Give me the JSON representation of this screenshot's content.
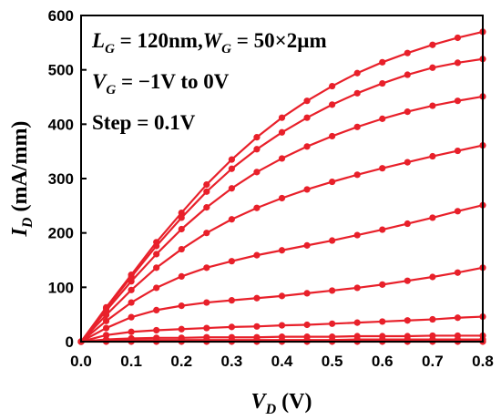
{
  "chart_data": {
    "type": "line",
    "title": "",
    "xlabel": {
      "main": "V",
      "sub": "D",
      "unit": " (V)"
    },
    "ylabel": {
      "main": "I",
      "sub": "D",
      "unit": " (mA/mm)"
    },
    "xlim": [
      0,
      0.8
    ],
    "ylim": [
      0,
      600
    ],
    "xticks": [
      "0.0",
      "0.1",
      "0.2",
      "0.3",
      "0.4",
      "0.5",
      "0.6",
      "0.7",
      "0.8"
    ],
    "yticks": [
      "0",
      "100",
      "200",
      "300",
      "400",
      "500",
      "600"
    ],
    "grid": false,
    "line_color": "#e8202a",
    "x": [
      0,
      0.05,
      0.1,
      0.15,
      0.2,
      0.25,
      0.3,
      0.35,
      0.4,
      0.45,
      0.5,
      0.55,
      0.6,
      0.65,
      0.7,
      0.75,
      0.8
    ],
    "series": [
      {
        "values": [
          0,
          63,
          123,
          183,
          237,
          289,
          335,
          376,
          412,
          443,
          470,
          494,
          514,
          531,
          546,
          559,
          570
        ]
      },
      {
        "values": [
          0,
          61,
          119,
          176,
          228,
          276,
          318,
          354,
          385,
          412,
          436,
          457,
          475,
          491,
          504,
          513,
          520
        ]
      },
      {
        "values": [
          0,
          57,
          111,
          161,
          207,
          247,
          282,
          312,
          337,
          359,
          378,
          395,
          410,
          423,
          434,
          443,
          451
        ]
      },
      {
        "values": [
          0,
          49,
          95,
          136,
          170,
          200,
          225,
          246,
          264,
          280,
          294,
          307,
          319,
          330,
          341,
          351,
          361
        ]
      },
      {
        "values": [
          0,
          38,
          72,
          99,
          120,
          136,
          148,
          159,
          168,
          177,
          186,
          196,
          206,
          217,
          228,
          240,
          251
        ]
      },
      {
        "values": [
          0,
          25,
          45,
          58,
          66,
          72,
          76,
          80,
          84,
          89,
          94,
          99,
          105,
          112,
          119,
          127,
          136
        ]
      },
      {
        "values": [
          0,
          12,
          18,
          21,
          23,
          25,
          27,
          28,
          30,
          31,
          33,
          35,
          37,
          39,
          41,
          44,
          46
        ]
      },
      {
        "values": [
          0,
          4,
          6,
          7,
          7,
          8,
          8,
          8,
          9,
          9,
          9,
          10,
          10,
          10,
          11,
          11,
          11
        ]
      },
      {
        "values": [
          0,
          2,
          3,
          3,
          3,
          3,
          3,
          3,
          3,
          3,
          3,
          4,
          4,
          4,
          4,
          4,
          4
        ]
      },
      {
        "values": [
          0,
          1,
          1,
          1,
          1,
          1,
          1,
          1,
          1,
          1,
          1,
          1,
          1,
          1,
          1,
          1,
          1
        ]
      },
      {
        "values": [
          0,
          0,
          0,
          0,
          0,
          0,
          0,
          0,
          0,
          0,
          0,
          0,
          0,
          0,
          0,
          0,
          0
        ]
      }
    ],
    "annotations": [
      {
        "main": "L",
        "sub": "G",
        "rest": " = 120nm,",
        "main2": "W",
        "sub2": "G",
        "rest2": " = 50×2µm"
      },
      {
        "main": "V",
        "sub": "G",
        "rest": " = −1V to 0V"
      },
      {
        "text": "Step = 0.1V"
      }
    ]
  }
}
